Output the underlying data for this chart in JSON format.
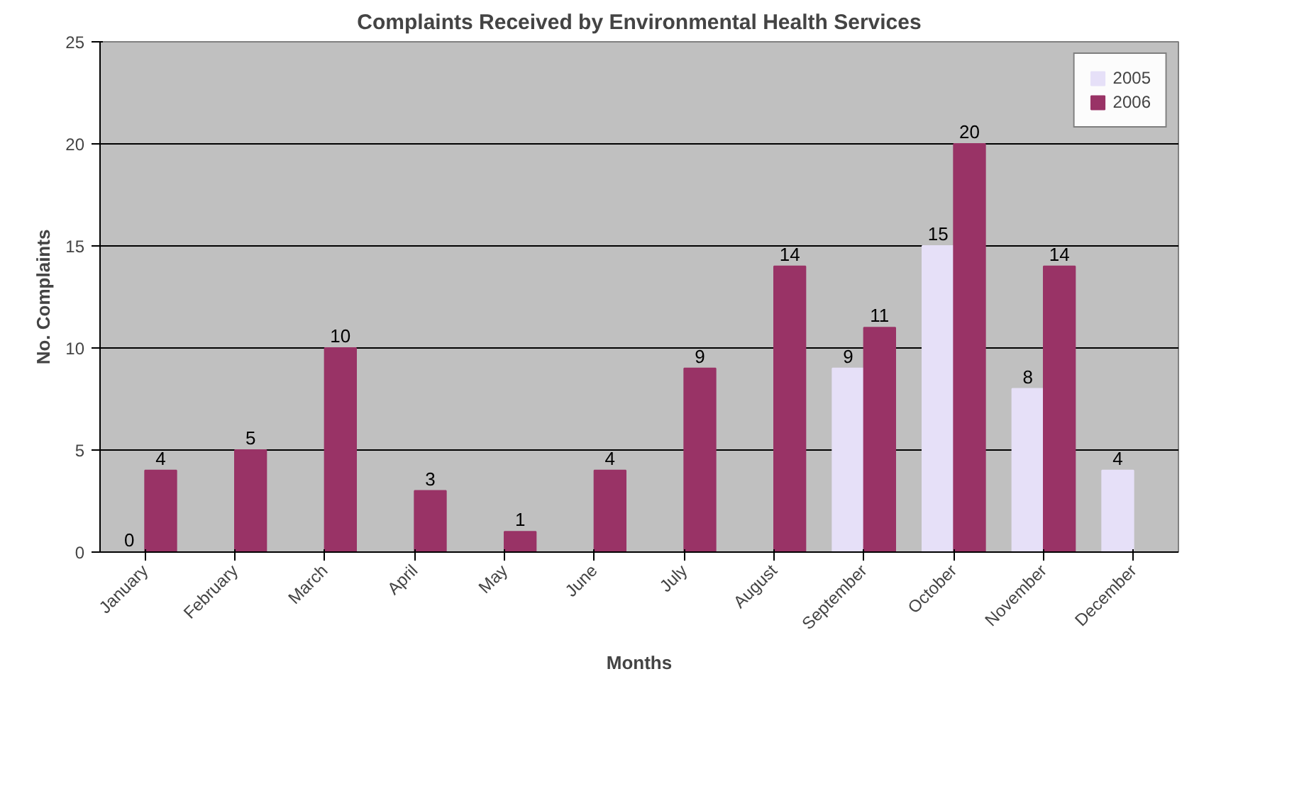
{
  "chart_data": {
    "type": "bar",
    "title": "Complaints Received by Environmental Health Services",
    "xlabel": "Months",
    "ylabel": "No. Complaints",
    "categories": [
      "January",
      "February",
      "March",
      "April",
      "May",
      "June",
      "July",
      "August",
      "September",
      "October",
      "November",
      "December"
    ],
    "series": [
      {
        "name": "2005",
        "color": "#e6e0f8",
        "values": [
          0,
          null,
          null,
          null,
          null,
          null,
          null,
          null,
          9,
          15,
          8,
          4
        ]
      },
      {
        "name": "2006",
        "color": "#993366",
        "values": [
          4,
          5,
          10,
          3,
          1,
          4,
          9,
          14,
          11,
          20,
          14,
          null
        ]
      }
    ],
    "ylim": [
      0,
      25
    ],
    "yticks": [
      0,
      5,
      10,
      15,
      20,
      25
    ],
    "grid": "y",
    "legend": "top right",
    "data_labels": true
  }
}
